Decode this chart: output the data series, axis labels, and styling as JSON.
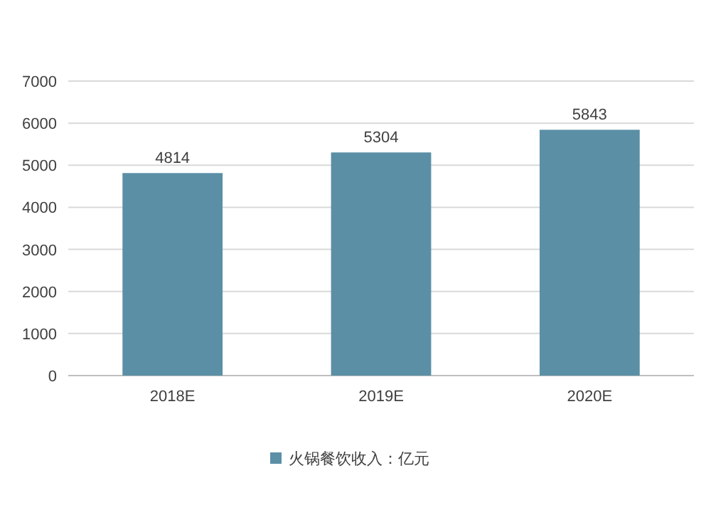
{
  "chart_data": {
    "type": "bar",
    "categories": [
      "2018E",
      "2019E",
      "2020E"
    ],
    "series": [
      {
        "name": "火锅餐饮收入：亿元",
        "color": "#5b8fa6",
        "values": [
          4814,
          5304,
          5843
        ]
      }
    ],
    "ylim": [
      0,
      7000
    ],
    "yticks": [
      0,
      1000,
      2000,
      3000,
      4000,
      5000,
      6000,
      7000
    ],
    "grid": "y",
    "legend": "bottom",
    "data_labels": true
  }
}
